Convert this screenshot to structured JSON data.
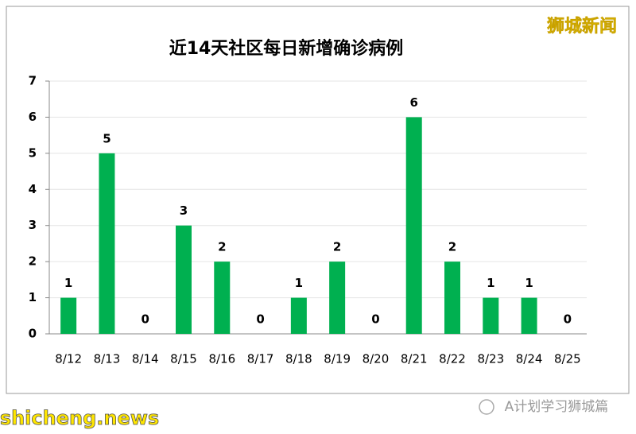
{
  "chart_data": {
    "type": "bar",
    "title": "近14天社区每日新增确诊病例",
    "categories": [
      "8/12",
      "8/13",
      "8/14",
      "8/15",
      "8/16",
      "8/17",
      "8/18",
      "8/19",
      "8/20",
      "8/21",
      "8/22",
      "8/23",
      "8/24",
      "8/25"
    ],
    "values": [
      1,
      5,
      0,
      3,
      2,
      0,
      1,
      2,
      0,
      6,
      2,
      1,
      1,
      0
    ],
    "color": "#00b050",
    "ylim": [
      0,
      7
    ],
    "yticks": [
      0,
      1,
      2,
      3,
      4,
      5,
      6,
      7
    ],
    "grid": true,
    "annotations": [
      "狮城新闻",
      "A计划学习狮城篇",
      "shicheng.news"
    ]
  }
}
